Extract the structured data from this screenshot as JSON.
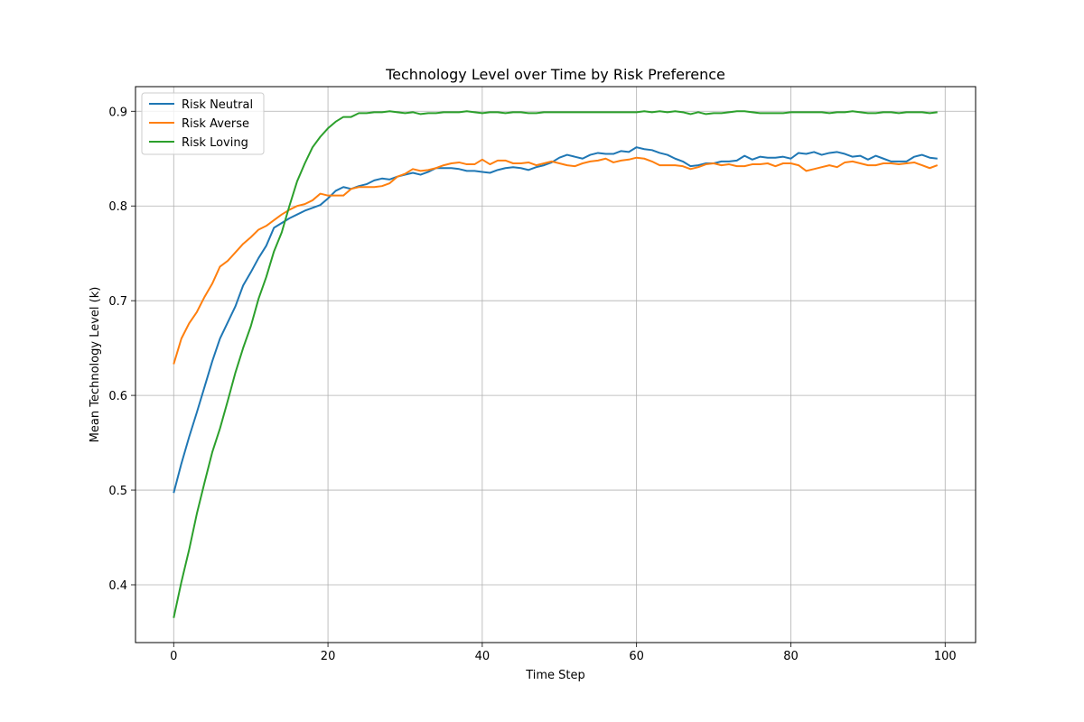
{
  "chart_data": {
    "type": "line",
    "title": "Technology Level over Time by Risk Preference",
    "xlabel": "Time Step",
    "ylabel": "Mean Technology Level (k)",
    "xlim": [
      -4.95,
      103.95
    ],
    "ylim": [
      0.339,
      0.926
    ],
    "x_ticks": [
      0,
      20,
      40,
      60,
      80,
      100
    ],
    "y_ticks": [
      0.4,
      0.5,
      0.6,
      0.7,
      0.8,
      0.9
    ],
    "grid": true,
    "legend_position": "top-left",
    "x": [
      0,
      1,
      2,
      3,
      4,
      5,
      6,
      7,
      8,
      9,
      10,
      11,
      12,
      13,
      14,
      15,
      16,
      17,
      18,
      19,
      20,
      21,
      22,
      23,
      24,
      25,
      26,
      27,
      28,
      29,
      30,
      31,
      32,
      33,
      34,
      35,
      36,
      37,
      38,
      39,
      40,
      41,
      42,
      43,
      44,
      45,
      46,
      47,
      48,
      49,
      50,
      51,
      52,
      53,
      54,
      55,
      56,
      57,
      58,
      59,
      60,
      61,
      62,
      63,
      64,
      65,
      66,
      67,
      68,
      69,
      70,
      71,
      72,
      73,
      74,
      75,
      76,
      77,
      78,
      79,
      80,
      81,
      82,
      83,
      84,
      85,
      86,
      87,
      88,
      89,
      90,
      91,
      92,
      93,
      94,
      95,
      96,
      97,
      98,
      99
    ],
    "series": [
      {
        "name": "Risk Neutral",
        "color": "#1f77b4",
        "values": [
          0.497,
          0.528,
          0.556,
          0.582,
          0.609,
          0.636,
          0.66,
          0.677,
          0.694,
          0.716,
          0.73,
          0.745,
          0.758,
          0.777,
          0.782,
          0.787,
          0.791,
          0.795,
          0.798,
          0.801,
          0.808,
          0.816,
          0.82,
          0.818,
          0.821,
          0.823,
          0.827,
          0.829,
          0.828,
          0.831,
          0.833,
          0.835,
          0.833,
          0.836,
          0.84,
          0.84,
          0.84,
          0.839,
          0.837,
          0.837,
          0.836,
          0.835,
          0.838,
          0.84,
          0.841,
          0.84,
          0.838,
          0.841,
          0.843,
          0.846,
          0.851,
          0.854,
          0.852,
          0.85,
          0.854,
          0.856,
          0.855,
          0.855,
          0.858,
          0.857,
          0.862,
          0.86,
          0.859,
          0.856,
          0.854,
          0.85,
          0.847,
          0.842,
          0.843,
          0.845,
          0.845,
          0.847,
          0.847,
          0.848,
          0.853,
          0.849,
          0.852,
          0.851,
          0.851,
          0.852,
          0.85,
          0.856,
          0.855,
          0.857,
          0.854,
          0.856,
          0.857,
          0.855,
          0.852,
          0.853,
          0.849,
          0.853,
          0.85,
          0.847,
          0.847,
          0.847,
          0.852,
          0.854,
          0.851,
          0.85
        ]
      },
      {
        "name": "Risk Averse",
        "color": "#ff7f0e",
        "values": [
          0.633,
          0.66,
          0.676,
          0.688,
          0.704,
          0.718,
          0.736,
          0.742,
          0.751,
          0.76,
          0.767,
          0.775,
          0.779,
          0.785,
          0.791,
          0.796,
          0.8,
          0.802,
          0.806,
          0.813,
          0.811,
          0.811,
          0.811,
          0.818,
          0.82,
          0.82,
          0.82,
          0.821,
          0.824,
          0.831,
          0.834,
          0.839,
          0.837,
          0.838,
          0.84,
          0.843,
          0.845,
          0.846,
          0.844,
          0.844,
          0.849,
          0.844,
          0.848,
          0.848,
          0.845,
          0.845,
          0.846,
          0.843,
          0.845,
          0.847,
          0.845,
          0.843,
          0.842,
          0.845,
          0.847,
          0.848,
          0.85,
          0.846,
          0.848,
          0.849,
          0.851,
          0.85,
          0.847,
          0.843,
          0.843,
          0.843,
          0.842,
          0.839,
          0.841,
          0.844,
          0.845,
          0.843,
          0.844,
          0.842,
          0.842,
          0.844,
          0.844,
          0.845,
          0.842,
          0.845,
          0.845,
          0.843,
          0.837,
          0.839,
          0.841,
          0.843,
          0.841,
          0.846,
          0.847,
          0.845,
          0.843,
          0.843,
          0.845,
          0.845,
          0.844,
          0.845,
          0.846,
          0.843,
          0.84,
          0.843
        ]
      },
      {
        "name": "Risk Loving",
        "color": "#2ca02c",
        "values": [
          0.365,
          0.403,
          0.437,
          0.475,
          0.508,
          0.54,
          0.565,
          0.594,
          0.624,
          0.65,
          0.673,
          0.702,
          0.725,
          0.752,
          0.772,
          0.8,
          0.826,
          0.845,
          0.862,
          0.873,
          0.882,
          0.889,
          0.894,
          0.894,
          0.898,
          0.898,
          0.899,
          0.899,
          0.9,
          0.899,
          0.898,
          0.899,
          0.897,
          0.898,
          0.898,
          0.899,
          0.899,
          0.899,
          0.9,
          0.899,
          0.898,
          0.899,
          0.899,
          0.898,
          0.899,
          0.899,
          0.898,
          0.898,
          0.899,
          0.899,
          0.899,
          0.899,
          0.899,
          0.899,
          0.899,
          0.899,
          0.899,
          0.899,
          0.899,
          0.899,
          0.899,
          0.9,
          0.899,
          0.9,
          0.899,
          0.9,
          0.899,
          0.897,
          0.899,
          0.897,
          0.898,
          0.898,
          0.899,
          0.9,
          0.9,
          0.899,
          0.898,
          0.898,
          0.898,
          0.898,
          0.899,
          0.899,
          0.899,
          0.899,
          0.899,
          0.898,
          0.899,
          0.899,
          0.9,
          0.899,
          0.898,
          0.898,
          0.899,
          0.899,
          0.898,
          0.899,
          0.899,
          0.899,
          0.898,
          0.899
        ]
      }
    ]
  }
}
